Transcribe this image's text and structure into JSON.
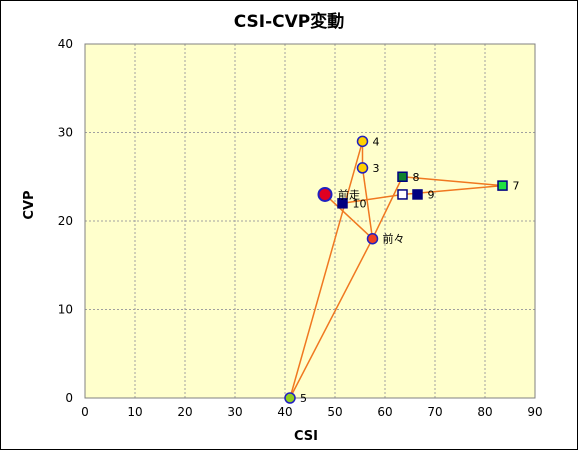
{
  "chart_data": {
    "type": "scatter",
    "title": "CSI-CVP変動",
    "xlabel": "CSI",
    "ylabel": "CVP",
    "xlim": [
      0,
      90
    ],
    "ylim": [
      0,
      40
    ],
    "x_ticks": [
      "0",
      "10",
      "20",
      "30",
      "40",
      "50",
      "60",
      "70",
      "80",
      "90"
    ],
    "y_ticks": [
      "0",
      "10",
      "20",
      "30",
      "40"
    ],
    "grid": true,
    "plot_background": "#ffffcc",
    "line_color": "#f07820",
    "points": [
      {
        "label": "前走",
        "x": 48,
        "y": 23,
        "shape": "circle",
        "fill": "#e00020",
        "stroke": "#2020c0",
        "big": true
      },
      {
        "label": "前々",
        "x": 57.5,
        "y": 18,
        "shape": "circle",
        "fill": "#f04020",
        "stroke": "#2020c0",
        "big": false
      },
      {
        "label": "3",
        "x": 55.5,
        "y": 26,
        "shape": "circle",
        "fill": "#ffd000",
        "stroke": "#2020c0",
        "big": false
      },
      {
        "label": "4",
        "x": 55.5,
        "y": 29,
        "shape": "circle",
        "fill": "#ffd000",
        "stroke": "#2020c0",
        "big": false
      },
      {
        "label": "5",
        "x": 41,
        "y": 0,
        "shape": "circle",
        "fill": "#90d020",
        "stroke": "#2020c0",
        "big": false
      },
      {
        "label": "7",
        "x": 83.5,
        "y": 24,
        "shape": "square",
        "fill": "#20e040",
        "stroke": "#000080",
        "big": false
      },
      {
        "label": "8",
        "x": 63.5,
        "y": 25,
        "shape": "square",
        "fill": "#108030",
        "stroke": "#000080",
        "big": false
      },
      {
        "label": "9",
        "x": 66.5,
        "y": 23,
        "shape": "square",
        "fill": "#000080",
        "stroke": "#000080",
        "big": false
      },
      {
        "label": "10",
        "x": 51.5,
        "y": 22,
        "shape": "square",
        "fill": "#000080",
        "stroke": "#000080",
        "big": false
      },
      {
        "label": "",
        "x": 63.5,
        "y": 23,
        "shape": "square",
        "fill": "#ffffff",
        "stroke": "#000080",
        "big": false
      }
    ],
    "path": [
      [
        48,
        23
      ],
      [
        57.5,
        18
      ],
      [
        55.5,
        26
      ],
      [
        55.5,
        29
      ],
      [
        41,
        0
      ],
      [
        57.5,
        18
      ],
      [
        63.5,
        25
      ],
      [
        83.5,
        24
      ],
      [
        63.5,
        23
      ],
      [
        51.5,
        22
      ]
    ]
  }
}
